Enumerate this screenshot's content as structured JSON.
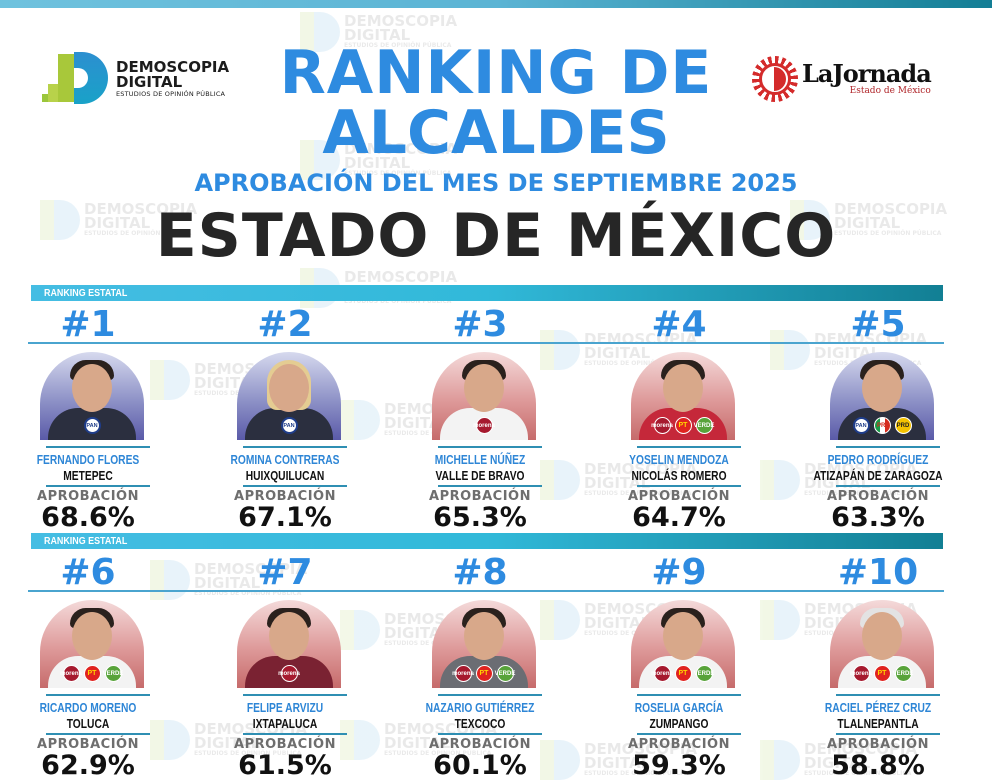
{
  "header": {
    "logo_left": {
      "line1": "DEMOSCOPIA",
      "line2": "DIGITAL",
      "tagline": "ESTUDIOS DE OPINIÓN PÚBLICA"
    },
    "title_line1": "RANKING DE",
    "title_line2": "ALCALDES",
    "subtitle": "APROBACIÓN DEL MES DE SEPTIEMBRE 2025",
    "state": "ESTADO DE MÉXICO",
    "logo_right": {
      "name": "LaJornada",
      "sub": "Estado de México"
    }
  },
  "watermark": {
    "line1": "DEMOSCOPIA",
    "line2": "DIGITAL",
    "line3": "ESTUDIOS DE OPINIÓN PÚBLICA"
  },
  "sections": [
    {
      "label": "RANKING ESTATAL"
    },
    {
      "label": "RANKING ESTATAL"
    }
  ],
  "approval_label": "APROBACIÓN",
  "colors": {
    "title_blue": "#2e8be0",
    "band_start": "#45bde3",
    "band_end": "#127f94",
    "state_dark": "#262626"
  },
  "chart_data": {
    "type": "table",
    "title": "RANKING DE ALCALDES — APROBACIÓN DEL MES DE SEPTIEMBRE 2025 — ESTADO DE MÉXICO",
    "columns": [
      "rank",
      "name",
      "municipality",
      "approval",
      "parties"
    ],
    "rows": [
      {
        "rank": "#1",
        "name": "FERNANDO FLORES",
        "municipality": "METEPEC",
        "approval": "68.6%",
        "value": 68.6,
        "parties": [
          "PAN"
        ]
      },
      {
        "rank": "#2",
        "name": "ROMINA CONTRERAS",
        "municipality": "HUIXQUILUCAN",
        "approval": "67.1%",
        "value": 67.1,
        "parties": [
          "PAN"
        ]
      },
      {
        "rank": "#3",
        "name": "MICHELLE NÚÑEZ",
        "municipality": "VALLE DE BRAVO",
        "approval": "65.3%",
        "value": 65.3,
        "parties": [
          "MORENA"
        ]
      },
      {
        "rank": "#4",
        "name": "YOSELIN MENDOZA",
        "municipality": "NICOLÁS ROMERO",
        "approval": "64.7%",
        "value": 64.7,
        "parties": [
          "MORENA",
          "PT",
          "PVEM"
        ]
      },
      {
        "rank": "#5",
        "name": "PEDRO RODRÍGUEZ",
        "municipality": "ATIZAPÁN DE ZARAGOZA",
        "approval": "63.3%",
        "value": 63.3,
        "parties": [
          "PAN",
          "PRI",
          "PRD"
        ]
      },
      {
        "rank": "#6",
        "name": "RICARDO MORENO",
        "municipality": "TOLUCA",
        "approval": "62.9%",
        "value": 62.9,
        "parties": [
          "MORENA",
          "PT",
          "PVEM"
        ]
      },
      {
        "rank": "#7",
        "name": "FELIPE ARVIZU",
        "municipality": "IXTAPALUCA",
        "approval": "61.5%",
        "value": 61.5,
        "parties": [
          "MORENA"
        ]
      },
      {
        "rank": "#8",
        "name": "NAZARIO GUTIÉRREZ",
        "municipality": "TEXCOCO",
        "approval": "60.1%",
        "value": 60.1,
        "parties": [
          "MORENA",
          "PT",
          "PVEM"
        ]
      },
      {
        "rank": "#9",
        "name": "ROSELIA GARCÍA",
        "municipality": "ZUMPANGO",
        "approval": "59.3%",
        "value": 59.3,
        "parties": [
          "MORENA",
          "PT",
          "PVEM"
        ]
      },
      {
        "rank": "#10",
        "name": "RACIEL PÉREZ CRUZ",
        "municipality": "TLALNEPANTLA",
        "approval": "58.8%",
        "value": 58.8,
        "parties": [
          "MORENA",
          "PT",
          "PVEM"
        ]
      }
    ]
  },
  "badge_labels": {
    "PAN": "PAN",
    "PT": "PT",
    "MORENA": "morena",
    "PVEM": "VERDE",
    "PRI": "PRI",
    "PRD": "PRD"
  }
}
